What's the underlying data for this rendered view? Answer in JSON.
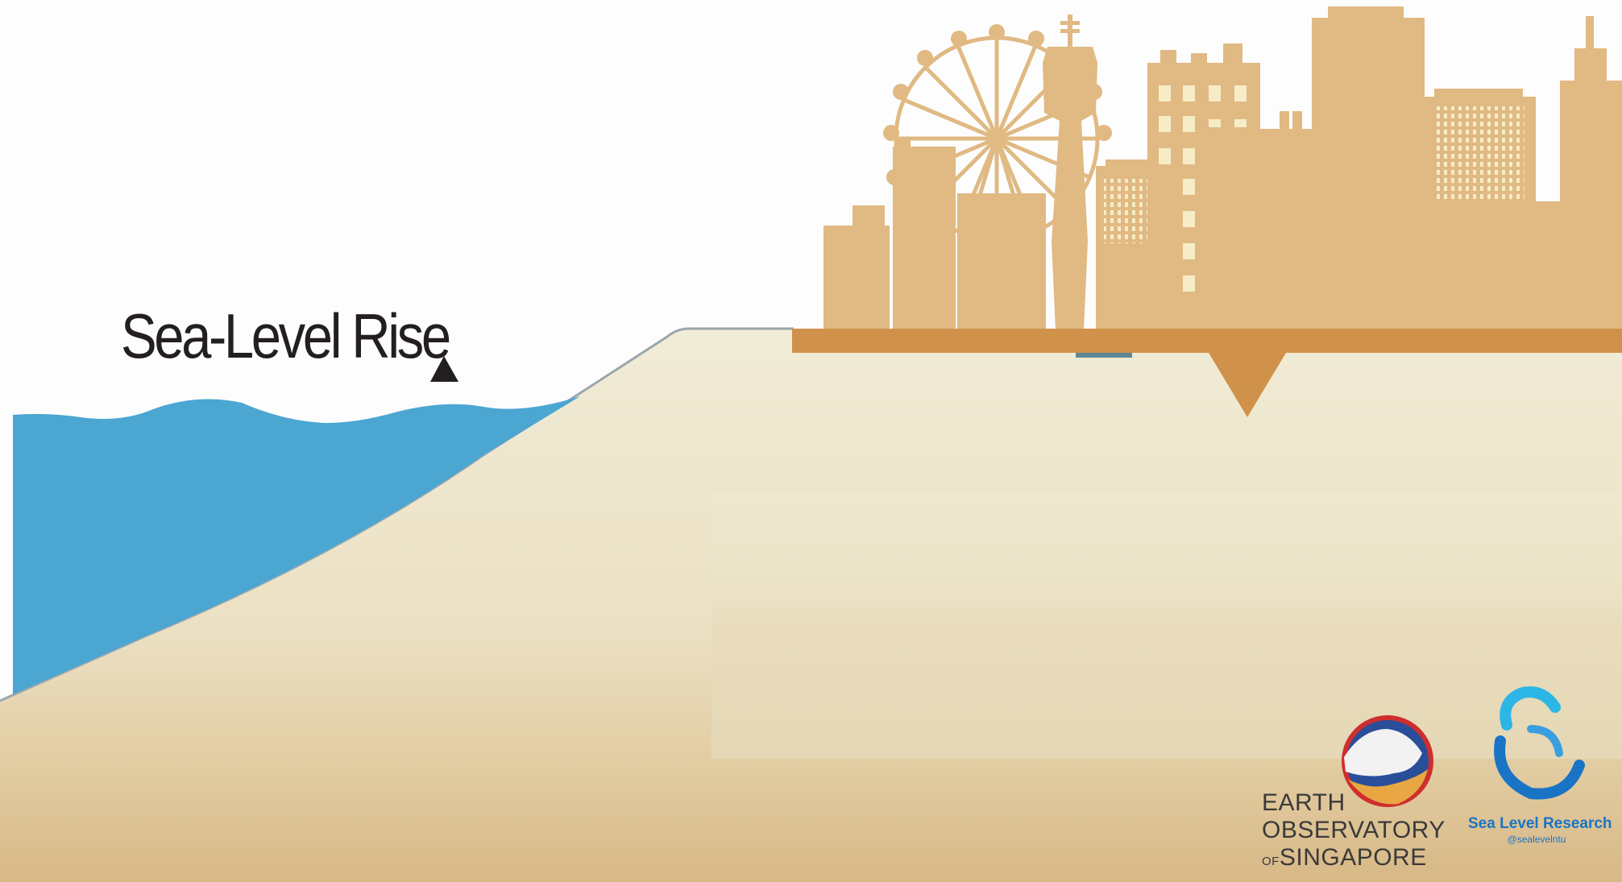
{
  "title": "Sea-Level Rise",
  "indicator_icon": "up-triangle-icon",
  "colors": {
    "sky": "#fdfdfd",
    "sea": "#4ba6d2",
    "sand_light": "#efead5",
    "sand_dark": "#d9b98a",
    "city": "#e0b983",
    "ground_slab": "#d0924a",
    "window": "#f6edc6"
  },
  "logos": {
    "eos": {
      "icon": "earth-observatory-logo-icon",
      "line1": "EARTH",
      "line2": "OBSERVATORY",
      "line3_prefix": "OF",
      "line3": "SINGAPORE"
    },
    "slr": {
      "icon": "sea-level-research-logo-icon",
      "name": "Sea Level Research",
      "handle": "@sealevelntu"
    }
  }
}
